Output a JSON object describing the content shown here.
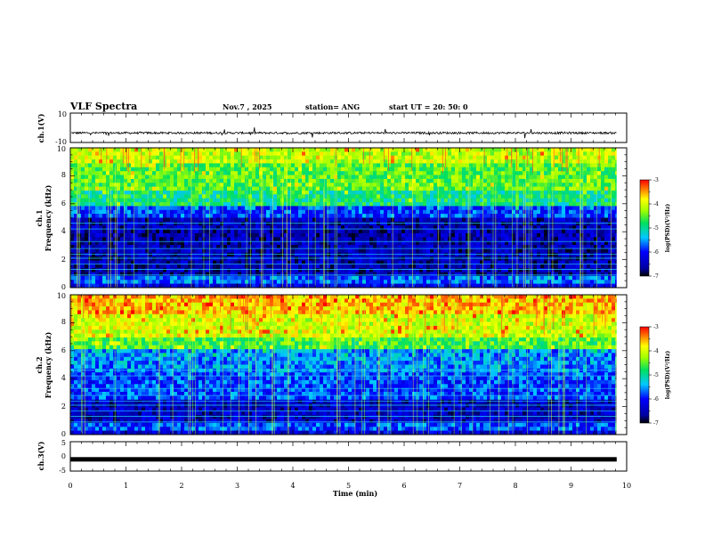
{
  "header": {
    "title": "VLF Spectra",
    "date": "Nov.7  , 2025",
    "station": "station= ANG",
    "start": "start  UT  =   20: 50: 0"
  },
  "chart_data": [
    {
      "type": "line",
      "panel": "ch1-waveform",
      "ylabel": "ch.1(V)",
      "ylim": [
        -10,
        10
      ],
      "ytick_labels": [
        "10",
        "-10"
      ],
      "baseline": -3.5,
      "xlim": [
        0,
        10
      ]
    },
    {
      "type": "heatmap",
      "panel": "ch1-spectrogram",
      "ylabel_line1": "ch.1",
      "ylabel_line2": "Frequency  (kHz)",
      "ylim": [
        0,
        10
      ],
      "ytick_labels": [
        "0",
        "2",
        "4",
        "6",
        "8",
        "10"
      ],
      "colorbar": {
        "label": "log(PSD)(V²/Hz)",
        "range": [
          -7,
          -3
        ],
        "tick_labels": [
          "-3",
          "-4",
          "-5",
          "-6",
          "-7"
        ]
      }
    },
    {
      "type": "heatmap",
      "panel": "ch2-spectrogram",
      "ylabel_line1": "ch.2",
      "ylabel_line2": "Frequency  (kHz)",
      "ylim": [
        0,
        10
      ],
      "ytick_labels": [
        "0",
        "2",
        "4",
        "6",
        "8",
        "10"
      ],
      "colorbar": {
        "label": "log(PSD)(V²/Hz)",
        "range": [
          -7,
          -3
        ],
        "tick_labels": [
          "-3",
          "-4",
          "-5",
          "-6",
          "-7"
        ]
      }
    },
    {
      "type": "line",
      "panel": "ch3-waveform",
      "ylabel": "ch.3(V)",
      "ylim": [
        -5,
        5
      ],
      "ytick_labels": [
        "5",
        "0",
        "-5"
      ],
      "baseline": -1.0,
      "xlim": [
        0,
        10
      ]
    }
  ],
  "xaxis": {
    "label": "Time  (min)",
    "range": [
      0,
      10
    ],
    "tick_labels": [
      "0",
      "1",
      "2",
      "3",
      "4",
      "5",
      "6",
      "7",
      "8",
      "9",
      "10"
    ],
    "data_end": 9.82
  }
}
